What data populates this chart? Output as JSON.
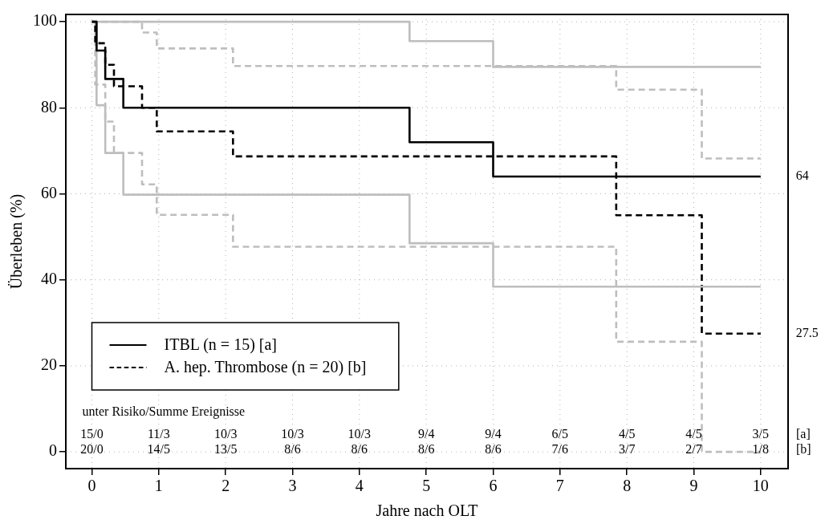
{
  "chart_data": {
    "type": "step",
    "xlabel": "Jahre nach OLT",
    "ylabel": "Überleben (%)",
    "xlim": [
      -0.39,
      10.41
    ],
    "xticks": [
      0,
      1,
      2,
      3,
      4,
      5,
      6,
      7,
      8,
      9,
      10
    ],
    "ylim": [
      -3.9,
      101.7
    ],
    "yticks": [
      0,
      20,
      40,
      60,
      80,
      100
    ],
    "grid": true,
    "legend": "bottom left",
    "series": [
      {
        "name": "ITBL (n = 15) [a]",
        "color": "#000000",
        "line_style": "solid",
        "x": [
          0,
          0.07,
          0.2,
          0.47,
          4.75,
          6,
          10
        ],
        "values": [
          100,
          93.3,
          86.7,
          80,
          72,
          64,
          64
        ]
      },
      {
        "color": "#bebebe",
        "line_style": "solid",
        "x": [
          0,
          4.75,
          6,
          10
        ],
        "values": [
          100,
          95.5,
          89.5,
          89.5
        ]
      },
      {
        "color": "#bebebe",
        "line_style": "solid",
        "x": [
          0,
          0.07,
          0.2,
          0.47,
          4.75,
          6,
          10
        ],
        "values": [
          100,
          80.6,
          69.5,
          59.8,
          48.5,
          38.4,
          38.4
        ]
      },
      {
        "name": "A. hep. Thrombose (n = 20) [b]",
        "color": "#000000",
        "line_style": "dashed",
        "x": [
          0,
          0.05,
          0.2,
          0.33,
          0.75,
          0.97,
          2.11,
          7.84,
          9.12,
          10
        ],
        "values": [
          100,
          95,
          90,
          85,
          80,
          74.5,
          68.7,
          55,
          27.5,
          27.5
        ]
      },
      {
        "color": "#bebebe",
        "line_style": "dashed",
        "x": [
          0,
          0.75,
          0.97,
          2.11,
          7.84,
          9.12,
          10
        ],
        "values": [
          100,
          97.5,
          93.8,
          89.7,
          84.2,
          68.2,
          68.2
        ]
      },
      {
        "color": "#bebebe",
        "line_style": "dashed",
        "x": [
          0,
          0.05,
          0.2,
          0.33,
          0.75,
          0.97,
          2.11,
          7.84,
          9.12,
          10
        ],
        "values": [
          100,
          85.4,
          76.8,
          69.5,
          62.2,
          55.1,
          47.7,
          25.6,
          0,
          0
        ]
      }
    ],
    "annotations": [
      "unter Risiko/Summe Ereignisse",
      {
        "text": "64",
        "x": 10,
        "y": 64
      },
      {
        "text": "27.5",
        "x": 10,
        "y": 27.5
      },
      "[a]",
      "[b]",
      "15/0",
      "11/3",
      "10/3",
      "10/3",
      "10/3",
      "9/4",
      "9/4",
      "6/5",
      "4/5",
      "4/5",
      "3/5",
      "20/0",
      "14/5",
      "13/5",
      "8/6",
      "8/6",
      "8/6",
      "8/6",
      "7/6",
      "3/7",
      "2/7",
      "1/8"
    ]
  }
}
